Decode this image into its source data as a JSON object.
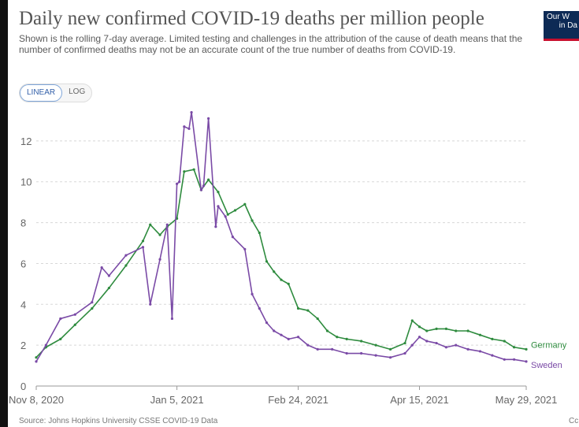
{
  "header": {
    "title": "Daily new confirmed COVID-19 deaths per million people",
    "subtitle": "Shown is the rolling 7-day average. Limited testing and challenges in the attribution of the cause of death means that the number of confirmed deaths may not be an accurate count of the true number of deaths from COVID-19.",
    "logo_line1": "Our W",
    "logo_line2": "in Da"
  },
  "controls": {
    "linear_label": "LINEAR",
    "log_label": "LOG",
    "active": "linear"
  },
  "footer": {
    "source": "Source: Johns Hopkins University CSSE COVID-19 Data",
    "cc": "Cc"
  },
  "colors": {
    "germany": "#2e8b3e",
    "sweden": "#7a4aa6",
    "grid": "#d8d8d8",
    "axis_text": "#666666"
  },
  "chart_data": {
    "type": "line",
    "title": "Daily new confirmed COVID-19 deaths per million people",
    "xlabel": "",
    "ylabel": "",
    "x_ticks": [
      "Nov 8, 2020",
      "Jan 5, 2021",
      "Feb 24, 2021",
      "Apr 15, 2021",
      "May 29, 2021"
    ],
    "ylim": [
      0,
      13.5
    ],
    "y_ticks": [
      0,
      2,
      4,
      6,
      8,
      10,
      12
    ],
    "grid": true,
    "legend": "end-of-line labels",
    "series": [
      {
        "name": "Germany",
        "x": [
          "2020-11-08",
          "2020-11-12",
          "2020-11-18",
          "2020-11-24",
          "2020-12-01",
          "2020-12-08",
          "2020-12-15",
          "2020-12-22",
          "2020-12-25",
          "2020-12-29",
          "2021-01-01",
          "2021-01-05",
          "2021-01-08",
          "2021-01-12",
          "2021-01-15",
          "2021-01-18",
          "2021-01-22",
          "2021-01-26",
          "2021-01-29",
          "2021-02-02",
          "2021-02-05",
          "2021-02-08",
          "2021-02-11",
          "2021-02-14",
          "2021-02-17",
          "2021-02-20",
          "2021-02-24",
          "2021-02-28",
          "2021-03-04",
          "2021-03-08",
          "2021-03-12",
          "2021-03-16",
          "2021-03-22",
          "2021-03-28",
          "2021-04-03",
          "2021-04-09",
          "2021-04-12",
          "2021-04-15",
          "2021-04-18",
          "2021-04-22",
          "2021-04-26",
          "2021-04-30",
          "2021-05-05",
          "2021-05-10",
          "2021-05-15",
          "2021-05-20",
          "2021-05-24",
          "2021-05-29"
        ],
        "values": [
          1.4,
          1.9,
          2.3,
          3.0,
          3.8,
          4.8,
          5.9,
          7.1,
          7.9,
          7.4,
          7.8,
          8.2,
          10.5,
          10.6,
          9.6,
          10.1,
          9.5,
          8.4,
          8.6,
          8.9,
          8.1,
          7.5,
          6.1,
          5.6,
          5.2,
          5.0,
          3.8,
          3.7,
          3.3,
          2.7,
          2.4,
          2.3,
          2.2,
          2.0,
          1.8,
          2.1,
          3.2,
          2.9,
          2.7,
          2.8,
          2.8,
          2.7,
          2.7,
          2.5,
          2.3,
          2.2,
          1.9,
          1.8
        ]
      },
      {
        "name": "Sweden",
        "x": [
          "2020-11-08",
          "2020-11-12",
          "2020-11-18",
          "2020-11-24",
          "2020-12-01",
          "2020-12-05",
          "2020-12-08",
          "2020-12-15",
          "2020-12-22",
          "2020-12-25",
          "2020-12-29",
          "2021-01-01",
          "2021-01-03",
          "2021-01-05",
          "2021-01-06",
          "2021-01-08",
          "2021-01-10",
          "2021-01-11",
          "2021-01-15",
          "2021-01-16",
          "2021-01-18",
          "2021-01-21",
          "2021-01-22",
          "2021-01-25",
          "2021-01-28",
          "2021-02-02",
          "2021-02-05",
          "2021-02-08",
          "2021-02-11",
          "2021-02-14",
          "2021-02-17",
          "2021-02-20",
          "2021-02-24",
          "2021-02-28",
          "2021-03-04",
          "2021-03-10",
          "2021-03-16",
          "2021-03-22",
          "2021-03-28",
          "2021-04-03",
          "2021-04-09",
          "2021-04-12",
          "2021-04-15",
          "2021-04-18",
          "2021-04-22",
          "2021-04-26",
          "2021-04-30",
          "2021-05-05",
          "2021-05-10",
          "2021-05-15",
          "2021-05-20",
          "2021-05-24",
          "2021-05-29"
        ],
        "values": [
          1.2,
          2.0,
          3.3,
          3.5,
          4.1,
          5.8,
          5.4,
          6.4,
          6.8,
          4.0,
          6.2,
          7.9,
          3.3,
          9.9,
          10.0,
          12.7,
          12.6,
          13.4,
          9.6,
          9.8,
          13.1,
          7.8,
          8.8,
          8.3,
          7.3,
          6.7,
          4.5,
          3.8,
          3.1,
          2.7,
          2.5,
          2.3,
          2.4,
          2.0,
          1.8,
          1.8,
          1.6,
          1.6,
          1.5,
          1.4,
          1.6,
          2.0,
          2.4,
          2.2,
          2.1,
          1.9,
          2.0,
          1.8,
          1.7,
          1.5,
          1.3,
          1.3,
          1.2
        ]
      }
    ]
  }
}
